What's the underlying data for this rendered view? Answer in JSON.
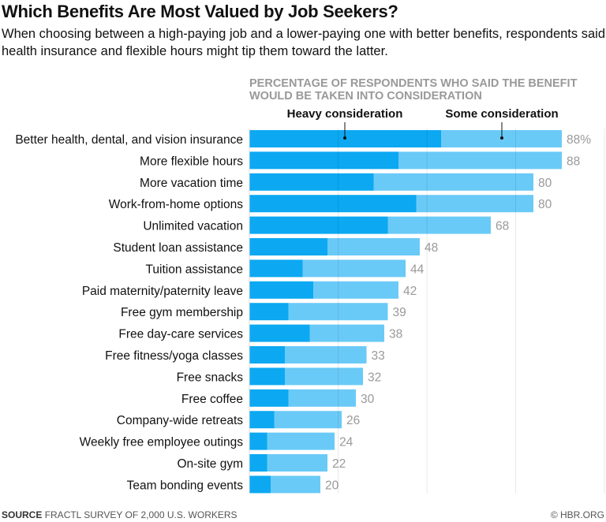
{
  "title": "Which Benefits Are Most Valued by Job Seekers?",
  "subtitle": "When choosing between a high-paying job and a lower-paying one with better benefits, respondents said health insurance and flexible hours might tip them toward the latter.",
  "footer": {
    "source_label": "SOURCE",
    "source_text": "FRACTL SURVEY OF 2,000 U.S. WORKERS",
    "credit": "© HBR.ORG"
  },
  "chart_data": {
    "type": "bar",
    "orientation": "horizontal",
    "stacked": true,
    "title": "PERCENTAGE OF RESPONDENTS WHO SAID THE BENEFIT WOULD BE TAKEN INTO CONSIDERATION",
    "title_lines": [
      "PERCENTAGE OF RESPONDENTS WHO SAID THE BENEFIT",
      "WOULD BE TAKEN INTO CONSIDERATION"
    ],
    "categories": [
      "Better health, dental, and vision insurance",
      "More flexible hours",
      "More vacation time",
      "Work-from-home options",
      "Unlimited vacation",
      "Student loan assistance",
      "Tuition assistance",
      "Paid maternity/paternity leave",
      "Free gym membership",
      "Free day-care services",
      "Free fitness/yoga classes",
      "Free snacks",
      "Free coffee",
      "Company-wide retreats",
      "Weekly free employee outings",
      "On-site gym",
      "Team bonding events"
    ],
    "totals": [
      88,
      88,
      80,
      80,
      68,
      48,
      44,
      42,
      39,
      38,
      33,
      32,
      30,
      26,
      24,
      22,
      20
    ],
    "total_labels": [
      "88%",
      "88",
      "80",
      "80",
      "68",
      "48",
      "44",
      "42",
      "39",
      "38",
      "33",
      "32",
      "30",
      "26",
      "24",
      "22",
      "20"
    ],
    "series": [
      {
        "name": "Heavy consideration",
        "color": "#0ca8f2",
        "values": [
          54,
          42,
          35,
          47,
          39,
          22,
          15,
          18,
          11,
          17,
          10,
          10,
          11,
          7,
          5,
          5,
          6
        ]
      },
      {
        "name": "Some consideration",
        "color": "#6acaf7",
        "values": [
          34,
          46,
          45,
          33,
          29,
          26,
          29,
          24,
          28,
          21,
          23,
          22,
          19,
          19,
          19,
          17,
          14
        ]
      }
    ],
    "xlim": [
      0,
      100
    ],
    "gridlines": [
      25,
      50,
      75,
      100
    ],
    "grid": true,
    "legend": "top, annotated above first bar"
  }
}
